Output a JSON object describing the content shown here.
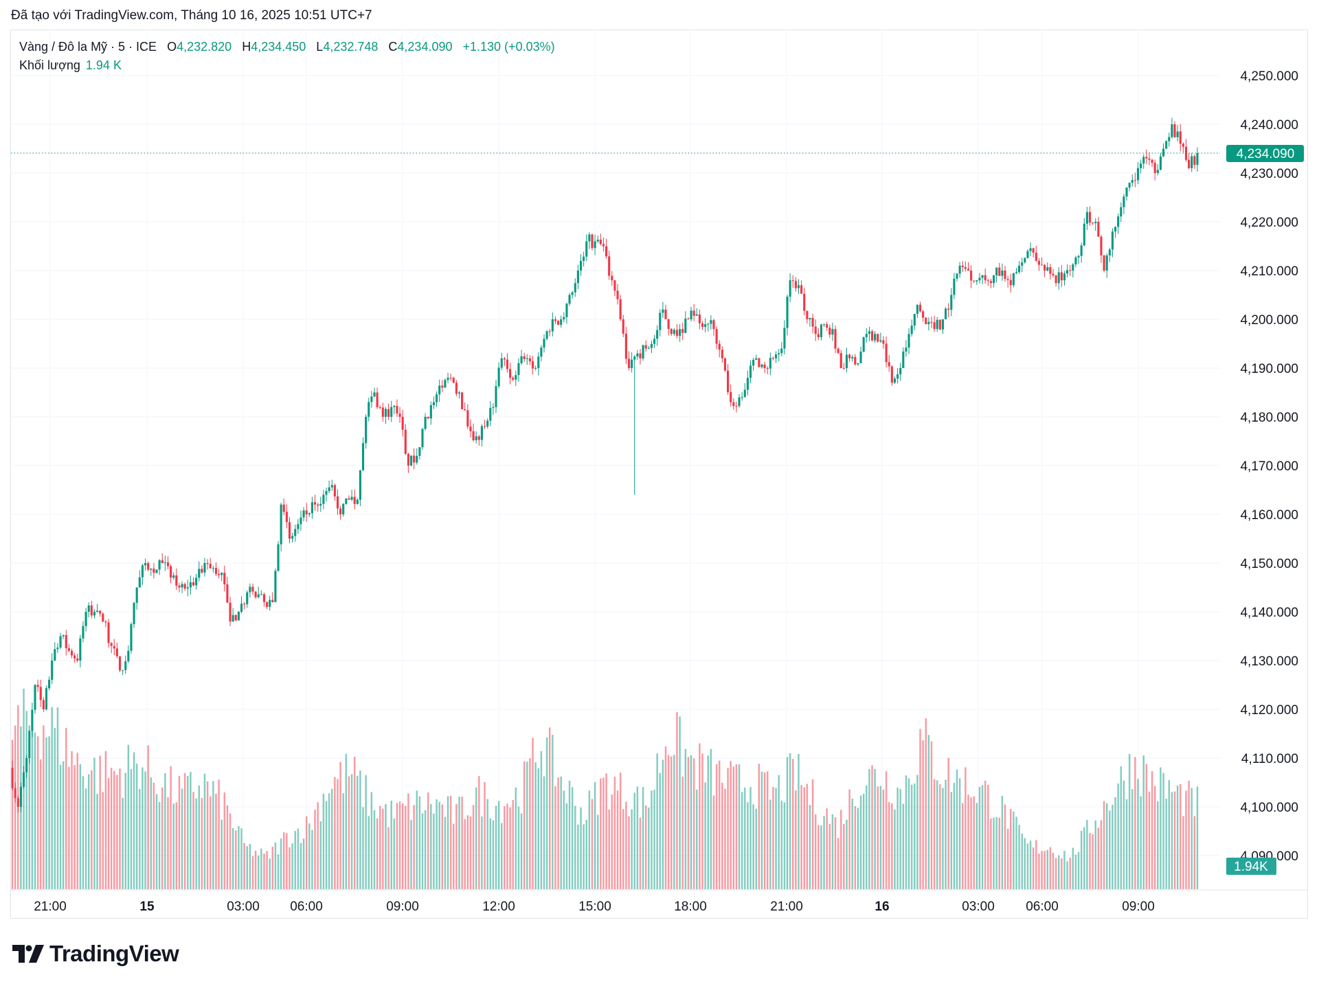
{
  "caption": "Đã tạo với TradingView.com, Tháng 10 16, 2025 10:51 UTC+7",
  "legend": {
    "symbol": "Vàng / Đô la Mỹ · 5 · ICE",
    "o_label": "O",
    "o": "4,232.820",
    "h_label": "H",
    "h": "4,234.450",
    "l_label": "L",
    "l": "4,232.748",
    "c_label": "C",
    "c": "4,234.090",
    "change": "+1.130 (+0.03%)",
    "volume_label": "Khối lượng",
    "volume": "1.94 K"
  },
  "logo_text": "TradingView",
  "chart_data": {
    "type": "candlestick",
    "title": "Vàng / Đô la Mỹ · 5 · ICE",
    "interval_minutes": 5,
    "price_axis_ticks": [
      "4,250.000",
      "4,240.000",
      "4,230.000",
      "4,220.000",
      "4,210.000",
      "4,200.000",
      "4,190.000",
      "4,180.000",
      "4,170.000",
      "4,160.000",
      "4,150.000",
      "4,140.000",
      "4,130.000",
      "4,120.000",
      "4,110.000",
      "4,100.000",
      "4,090.000"
    ],
    "ylim": [
      4090,
      4250
    ],
    "time_axis_ticks": [
      {
        "label": "21:00",
        "bold": false
      },
      {
        "label": "15",
        "bold": true
      },
      {
        "label": "03:00",
        "bold": false
      },
      {
        "label": "06:00",
        "bold": false
      },
      {
        "label": "09:00",
        "bold": false
      },
      {
        "label": "12:00",
        "bold": false
      },
      {
        "label": "15:00",
        "bold": false
      },
      {
        "label": "18:00",
        "bold": false
      },
      {
        "label": "21:00",
        "bold": false
      },
      {
        "label": "16",
        "bold": true
      },
      {
        "label": "03:00",
        "bold": false
      },
      {
        "label": "06:00",
        "bold": false
      },
      {
        "label": "09:00",
        "bold": false
      }
    ],
    "last_price": 4234.09,
    "last_price_label": "4,234.090",
    "last_volume_label": "1.94K",
    "close_path_15min": [
      4108,
      4100,
      4110,
      4125,
      4120,
      4130,
      4135,
      4132,
      4130,
      4140,
      4140,
      4138,
      4133,
      4128,
      4132,
      4145,
      4150,
      4148,
      4150,
      4147,
      4145,
      4145,
      4147,
      4150,
      4149,
      4148,
      4138,
      4140,
      4144,
      4143,
      4142,
      4142,
      4162,
      4155,
      4158,
      4160,
      4162,
      4164,
      4166,
      4160,
      4163,
      4163,
      4180,
      4185,
      4180,
      4182,
      4180,
      4170,
      4172,
      4180,
      4183,
      4186,
      4188,
      4185,
      4178,
      4176,
      4178,
      4182,
      4192,
      4188,
      4191,
      4192,
      4190,
      4196,
      4200,
      4200,
      4205,
      4210,
      4216,
      4216,
      4215,
      4208,
      4200,
      4190,
      4193,
      4194,
      4196,
      4202,
      4197,
      4198,
      4200,
      4201,
      4199,
      4198,
      4192,
      4183,
      4184,
      4188,
      4192,
      4190,
      4192,
      4194,
      4208,
      4207,
      4200,
      4197,
      4199,
      4198,
      4190,
      4192,
      4191,
      4197,
      4197,
      4195,
      4187,
      4190,
      4197,
      4203,
      4199,
      4198,
      4200,
      4205,
      4211,
      4210,
      4208,
      4208,
      4209,
      4210,
      4207,
      4211,
      4214,
      4212,
      4210,
      4209,
      4208,
      4210,
      4213,
      4222,
      4220,
      4210,
      4218,
      4223,
      4228,
      4231,
      4233,
      4230,
      4235,
      4240,
      4236,
      4231,
      4234.09
    ],
    "volume_relative_profile": [
      0.75,
      0.8,
      0.75,
      0.6,
      0.55,
      0.55,
      0.6,
      0.5,
      0.45,
      0.5,
      0.4,
      0.2,
      0.15,
      0.25,
      0.3,
      0.5,
      0.55,
      0.4,
      0.35,
      0.4,
      0.4,
      0.35,
      0.45,
      0.4,
      0.45,
      0.7,
      0.5,
      0.35,
      0.5,
      0.45,
      0.4,
      0.75,
      0.6,
      0.55,
      0.5,
      0.5,
      0.45,
      0.55,
      0.4,
      0.3,
      0.5,
      0.55,
      0.45,
      0.7,
      0.55,
      0.5,
      0.45,
      0.35,
      0.2,
      0.2,
      0.15,
      0.3,
      0.45,
      0.6,
      0.5,
      0.45,
      0.4
    ],
    "colors": {
      "up": "#089981",
      "down": "#F23645",
      "grid": "#f0f3fa",
      "label_bg": "#089981",
      "volume_label_bg": "#26a69a"
    },
    "grid": true
  }
}
